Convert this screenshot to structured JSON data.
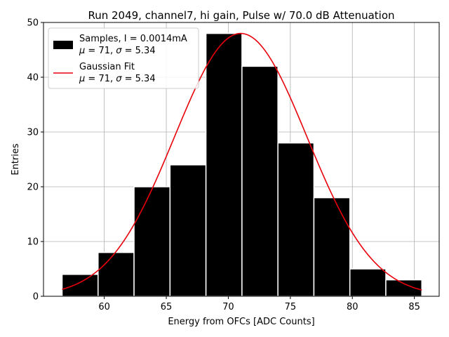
{
  "chart_data": {
    "type": "bar",
    "title": "Run 2049, channel7, hi gain, Pulse w/ 70.0 dB Attenuation",
    "xlabel": "Energy from OFCs [ADC Counts]",
    "ylabel": "Entries",
    "xlim": [
      55.1,
      87.0
    ],
    "ylim": [
      0,
      50
    ],
    "xticks": [
      60,
      65,
      70,
      75,
      80,
      85
    ],
    "yticks": [
      0,
      10,
      20,
      30,
      40,
      50
    ],
    "grid": true,
    "legend_position": "top-left",
    "histogram": {
      "name": "Samples",
      "legend_label": "Samples, I = 0.0014mA",
      "legend_stats": "μ = 71, σ = 5.34",
      "color": "#000000",
      "edgecolor": "#ffffff",
      "bin_edges": [
        56.6,
        59.5,
        62.4,
        65.3,
        68.2,
        71.1,
        74.0,
        76.9,
        79.8,
        82.7,
        85.6
      ],
      "counts": [
        4,
        8,
        20,
        24,
        48,
        42,
        28,
        18,
        5,
        3
      ]
    },
    "fit": {
      "name": "Gaussian Fit",
      "legend_label": "Gaussian Fit",
      "legend_stats": "μ = 71, σ = 5.34",
      "color": "#e8000b",
      "mu": 71.0,
      "sigma": 5.34,
      "amplitude": 48,
      "x_range": [
        56.6,
        85.6
      ]
    }
  }
}
